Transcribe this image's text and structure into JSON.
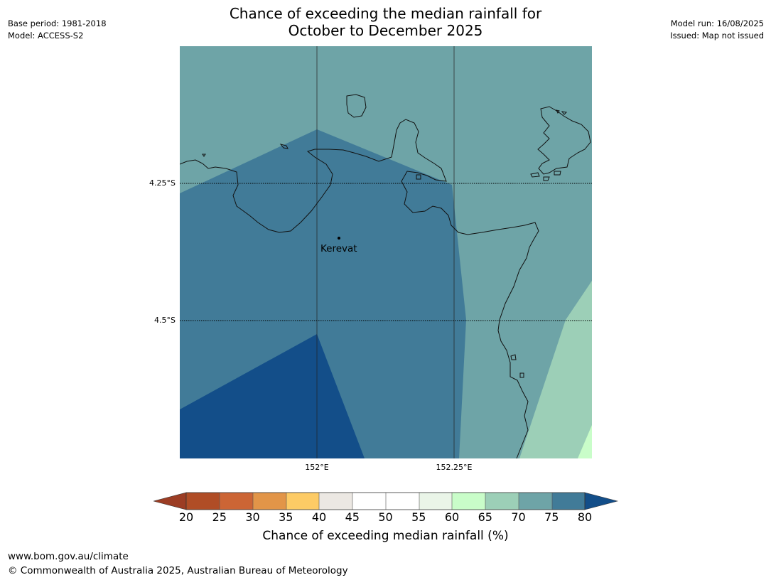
{
  "title": {
    "line1": "Chance of exceeding the median rainfall for",
    "line2": "October to December 2025"
  },
  "meta_left": {
    "base_period": "Base period: 1981-2018",
    "model": "Model: ACCESS-S2"
  },
  "meta_right": {
    "model_run": "Model run: 16/08/2025",
    "issued": "Issued: Map not issued"
  },
  "map": {
    "lat_labels": [
      "4.25°S",
      "4.5°S"
    ],
    "lon_labels": [
      "152°E",
      "152.25°E"
    ],
    "place": "Kerevat"
  },
  "colorbar": {
    "ticks": [
      "20",
      "25",
      "30",
      "35",
      "40",
      "45",
      "50",
      "55",
      "60",
      "65",
      "70",
      "75",
      "80"
    ],
    "label": "Chance of exceeding median rainfall (%)",
    "colors": {
      "below_20": "#9c3d24",
      "20_25": "#b04d26",
      "25_30": "#cc6535",
      "30_35": "#e29548",
      "35_40": "#fdcb65",
      "40_45": "#ece8e3",
      "45_50": "#ffffff",
      "50_55": "#ffffff",
      "55_60": "#eaf5e8",
      "60_65": "#c9fdc9",
      "65_70": "#9ccfb7",
      "70_75": "#6ea4a7",
      "75_80": "#417b98",
      "above_80": "#134e89"
    }
  },
  "footer": {
    "url": "www.bom.gov.au/climate",
    "copyright": "© Commonwealth of Australia 2025, Australian Bureau of Meteorology"
  }
}
